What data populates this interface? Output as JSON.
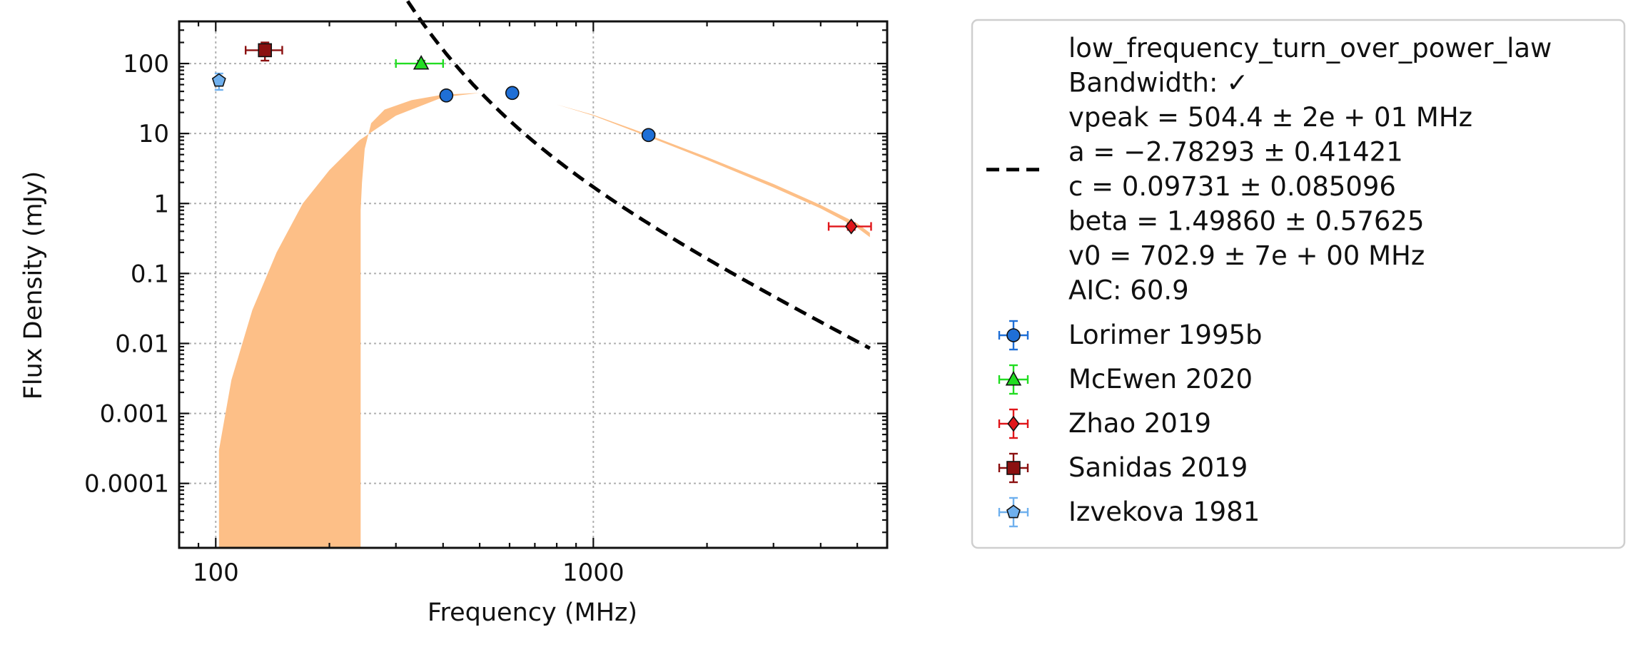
{
  "chart_data": {
    "type": "scatter",
    "xlabel": "Frequency (MHz)",
    "ylabel": "Flux Density (mJy)",
    "xscale": "log",
    "yscale": "log",
    "xlim": [
      80,
      6000
    ],
    "ylim": [
      1.2e-05,
      400
    ],
    "grid": true,
    "legend_position": "outside-right",
    "x_ticks": [
      {
        "value": 100,
        "label": "100"
      },
      {
        "value": 1000,
        "label": "1000"
      }
    ],
    "y_ticks": [
      {
        "value": 0.0001,
        "label": "0.0001"
      },
      {
        "value": 0.001,
        "label": "0.001"
      },
      {
        "value": 0.01,
        "label": "0.01"
      },
      {
        "value": 0.1,
        "label": "0.1"
      },
      {
        "value": 1,
        "label": "1"
      },
      {
        "value": 10,
        "label": "10"
      },
      {
        "value": 100,
        "label": "100"
      }
    ],
    "fit": {
      "model": "low_frequency_turn_over_power_law",
      "color": "#000000",
      "band_color": "#fdbf87",
      "vpeak": 504.4,
      "a": -2.78293,
      "c": 0.09731,
      "beta": 1.4986,
      "v0": 702.9,
      "x_range": [
        102,
        5400
      ],
      "legend_lines": [
        "low_frequency_turn_over_power_law",
        "Bandwidth: ✓",
        "vpeak = 504.4 ± 2e + 01 MHz",
        "a = −2.78293 ± 0.41421",
        "c = 0.09731 ± 0.085096",
        "beta = 1.49860 ± 0.57625",
        "v0 = 702.9 ± 7e + 00 MHz",
        "AIC: 60.9"
      ],
      "band_lower": [
        {
          "x": 102,
          "y": 0.0003
        },
        {
          "x": 110,
          "y": 0.003
        },
        {
          "x": 125,
          "y": 0.03
        },
        {
          "x": 145,
          "y": 0.2
        },
        {
          "x": 170,
          "y": 1
        },
        {
          "x": 200,
          "y": 3
        },
        {
          "x": 240,
          "y": 8
        },
        {
          "x": 300,
          "y": 18
        },
        {
          "x": 400,
          "y": 33
        },
        {
          "x": 500,
          "y": 38
        },
        {
          "x": 600,
          "y": 36
        },
        {
          "x": 800,
          "y": 26
        },
        {
          "x": 1000,
          "y": 18
        },
        {
          "x": 1400,
          "y": 9
        },
        {
          "x": 2000,
          "y": 4.2
        },
        {
          "x": 3000,
          "y": 1.7
        },
        {
          "x": 4000,
          "y": 0.85
        },
        {
          "x": 5000,
          "y": 0.45
        },
        {
          "x": 5400,
          "y": 0.33
        }
      ],
      "band_upper": [
        {
          "x": 5400,
          "y": 0.38
        },
        {
          "x": 5000,
          "y": 0.52
        },
        {
          "x": 4000,
          "y": 0.95
        },
        {
          "x": 3000,
          "y": 1.9
        },
        {
          "x": 2000,
          "y": 4.6
        },
        {
          "x": 1400,
          "y": 9.6
        },
        {
          "x": 1000,
          "y": 18.5
        },
        {
          "x": 800,
          "y": 26
        },
        {
          "x": 600,
          "y": 36
        },
        {
          "x": 500,
          "y": 38
        },
        {
          "x": 400,
          "y": 36
        },
        {
          "x": 330,
          "y": 30
        },
        {
          "x": 280,
          "y": 22
        },
        {
          "x": 258,
          "y": 14
        },
        {
          "x": 248,
          "y": 6
        },
        {
          "x": 244,
          "y": 2
        },
        {
          "x": 242,
          "y": 0.8
        },
        {
          "x": 242,
          "y": 1.2e-05
        }
      ],
      "band_bottom_left": {
        "x": 102,
        "y": 1.2e-05
      }
    },
    "series": [
      {
        "name": "Lorimer 1995b",
        "marker": "circle",
        "color": "#1f6fd6",
        "points": [
          {
            "x": 408,
            "y": 35,
            "yerr": 4,
            "xerr": 0
          },
          {
            "x": 610,
            "y": 38,
            "yerr": 4,
            "xerr": 0
          },
          {
            "x": 1400,
            "y": 9.5,
            "yerr": 1,
            "xerr": 0
          }
        ]
      },
      {
        "name": "McEwen 2020",
        "marker": "triangle",
        "color": "#22dd22",
        "points": [
          {
            "x": 350,
            "y": 100,
            "yerr": 10,
            "xerr_low": 50,
            "xerr_high": 50
          }
        ]
      },
      {
        "name": "Zhao 2019",
        "marker": "diamond",
        "color": "#e0161a",
        "points": [
          {
            "x": 4820,
            "y": 0.47,
            "yerr": 0.05,
            "xerr_low": 620,
            "xerr_high": 620
          }
        ]
      },
      {
        "name": "Sanidas 2019",
        "marker": "square",
        "color": "#8b1010",
        "points": [
          {
            "x": 135,
            "y": 155,
            "yerr": 45,
            "xerr_low": 15,
            "xerr_high": 15
          }
        ]
      },
      {
        "name": "Izvekova 1981",
        "marker": "pentagon",
        "color": "#6fb0ee",
        "points": [
          {
            "x": 102,
            "y": 57,
            "yerr": 15,
            "xerr": 0
          }
        ]
      }
    ]
  }
}
